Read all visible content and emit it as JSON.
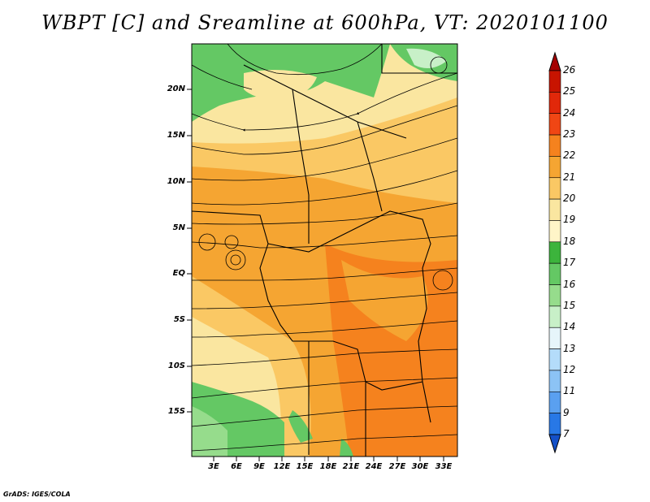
{
  "title": "WBPT [C] and Sreamline at 600hPa, VT: 2020101100",
  "map": {
    "lat_labels": [
      "20N",
      "15N",
      "10N",
      "5N",
      "EQ",
      "5S",
      "10S",
      "15S"
    ],
    "lon_labels": [
      "3E",
      "6E",
      "9E",
      "12E",
      "15E",
      "18E",
      "21E",
      "24E",
      "27E",
      "30E",
      "33E"
    ]
  },
  "colorbar": {
    "labels": [
      "26",
      "25",
      "24",
      "23",
      "22",
      "21",
      "20",
      "19",
      "18",
      "17",
      "16",
      "15",
      "14",
      "13",
      "12",
      "11",
      "9",
      "7"
    ],
    "colors": [
      "#a50000",
      "#c81400",
      "#e1280a",
      "#f04614",
      "#f5821e",
      "#f5a532",
      "#fac864",
      "#fae6a0",
      "#fff5c8",
      "#3cb43c",
      "#64c864",
      "#96dc8c",
      "#c8f0c8",
      "#e6f5fa",
      "#b4dcfa",
      "#8cc3f5",
      "#5aa0f0",
      "#2878e6",
      "#1450c8"
    ]
  },
  "footer": "GrADS: IGES/COLA",
  "icons": {
    "colorbar_top": "triangle-up-icon",
    "colorbar_bottom": "triangle-down-icon"
  }
}
